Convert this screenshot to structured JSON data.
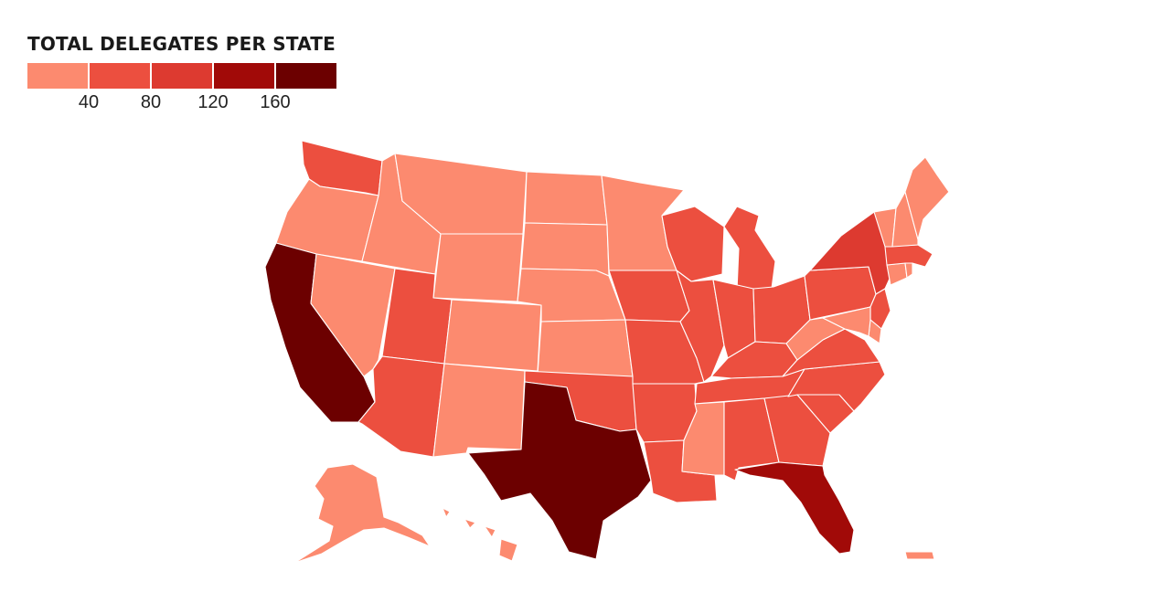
{
  "title": "TOTAL DELEGATES PER STATE",
  "legend": {
    "colors": [
      "#fc8a6f",
      "#ec4f3f",
      "#dd3a30",
      "#a10a08",
      "#6c0000"
    ],
    "ticks": [
      "40",
      "80",
      "120",
      "160"
    ]
  },
  "states": [
    {
      "id": "WA",
      "bin": 1
    },
    {
      "id": "OR",
      "bin": 0
    },
    {
      "id": "CA",
      "bin": 4
    },
    {
      "id": "ID",
      "bin": 0
    },
    {
      "id": "NV",
      "bin": 0
    },
    {
      "id": "MT",
      "bin": 0
    },
    {
      "id": "WY",
      "bin": 0
    },
    {
      "id": "UT",
      "bin": 1
    },
    {
      "id": "AZ",
      "bin": 1
    },
    {
      "id": "CO",
      "bin": 0
    },
    {
      "id": "NM",
      "bin": 0
    },
    {
      "id": "ND",
      "bin": 0
    },
    {
      "id": "SD",
      "bin": 0
    },
    {
      "id": "NE",
      "bin": 0
    },
    {
      "id": "KS",
      "bin": 0
    },
    {
      "id": "OK",
      "bin": 1
    },
    {
      "id": "TX",
      "bin": 4
    },
    {
      "id": "MN",
      "bin": 0
    },
    {
      "id": "IA",
      "bin": 1
    },
    {
      "id": "MO",
      "bin": 1
    },
    {
      "id": "AR",
      "bin": 1
    },
    {
      "id": "LA",
      "bin": 1
    },
    {
      "id": "WI",
      "bin": 1
    },
    {
      "id": "IL",
      "bin": 1
    },
    {
      "id": "MI",
      "bin": 1
    },
    {
      "id": "IN",
      "bin": 1
    },
    {
      "id": "OH",
      "bin": 1
    },
    {
      "id": "KY",
      "bin": 1
    },
    {
      "id": "TN",
      "bin": 1
    },
    {
      "id": "MS",
      "bin": 0
    },
    {
      "id": "AL",
      "bin": 1
    },
    {
      "id": "GA",
      "bin": 1
    },
    {
      "id": "FL",
      "bin": 3
    },
    {
      "id": "SC",
      "bin": 1
    },
    {
      "id": "NC",
      "bin": 1
    },
    {
      "id": "VA",
      "bin": 1
    },
    {
      "id": "WV",
      "bin": 0
    },
    {
      "id": "PA",
      "bin": 1
    },
    {
      "id": "NY",
      "bin": 2
    },
    {
      "id": "NJ",
      "bin": 1
    },
    {
      "id": "DE",
      "bin": 0
    },
    {
      "id": "MD",
      "bin": 0
    },
    {
      "id": "CT",
      "bin": 0
    },
    {
      "id": "RI",
      "bin": 0
    },
    {
      "id": "MA",
      "bin": 1
    },
    {
      "id": "VT",
      "bin": 0
    },
    {
      "id": "NH",
      "bin": 0
    },
    {
      "id": "ME",
      "bin": 0
    },
    {
      "id": "AK",
      "bin": 0
    },
    {
      "id": "HI",
      "bin": 0
    },
    {
      "id": "PR",
      "bin": 0
    }
  ]
}
